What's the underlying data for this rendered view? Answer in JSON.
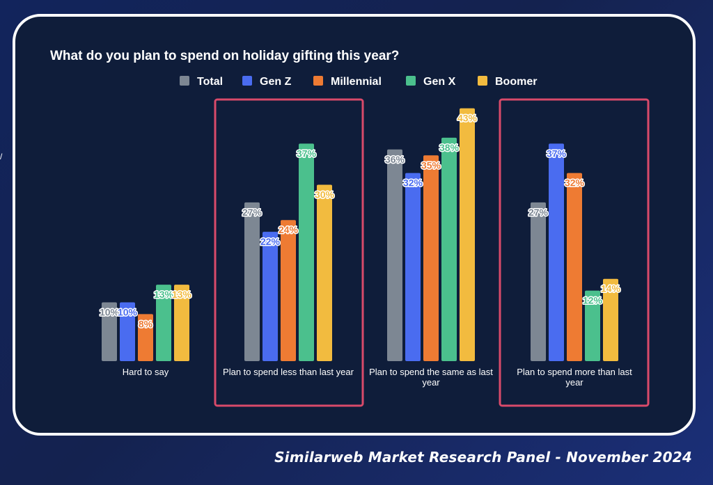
{
  "page": {
    "source": "Similarweb Market Research Panel - November 2024",
    "side_mark": "/"
  },
  "colors": {
    "background": "#0f1d3a",
    "highlight_box": "#d94a6a",
    "Total": "#7d8793",
    "Gen Z": "#4a6cf0",
    "Millennial": "#ee7b33",
    "Gen X": "#4bc08d",
    "Boomer": "#f2bb3f"
  },
  "chart_data": {
    "type": "bar",
    "title": "What do you plan to spend on holiday gifting this year?",
    "xlabel": "",
    "ylabel": "",
    "ylim": [
      0,
      45
    ],
    "grid": false,
    "legend_position": "top-center",
    "categories": [
      "Hard to say",
      "Plan to spend less than last year",
      "Plan to spend the same as last year",
      "Plan to spend more than last year"
    ],
    "highlighted_categories": [
      1,
      3
    ],
    "series": [
      {
        "name": "Total",
        "values": [
          10,
          27,
          36,
          27
        ]
      },
      {
        "name": "Gen Z",
        "values": [
          10,
          22,
          32,
          37
        ]
      },
      {
        "name": "Millennial",
        "values": [
          8,
          24,
          35,
          32
        ]
      },
      {
        "name": "Gen X",
        "values": [
          13,
          37,
          38,
          12
        ]
      },
      {
        "name": "Boomer",
        "values": [
          13,
          30,
          43,
          14
        ]
      }
    ],
    "value_suffix": "%"
  }
}
